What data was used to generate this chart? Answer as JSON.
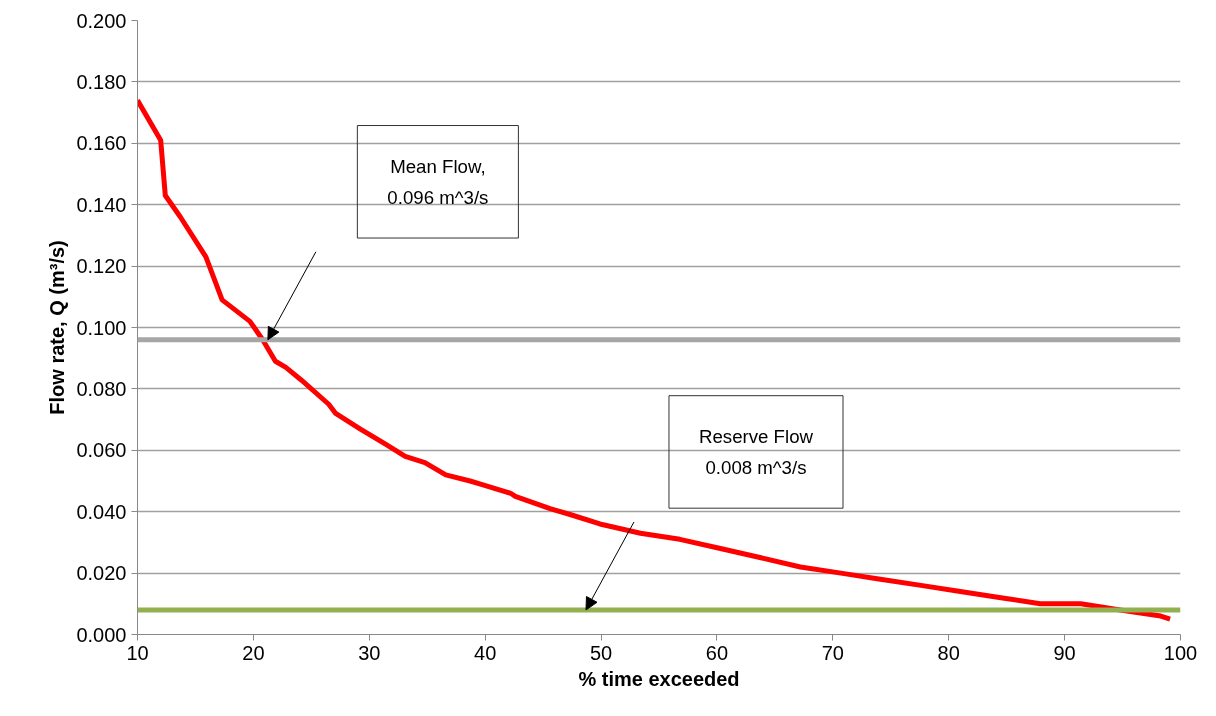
{
  "chart_data": {
    "type": "line",
    "xlabel": "% time exceeded",
    "ylabel": "Flow rate, Q (m³/s)",
    "x": [
      10,
      12,
      12.4,
      13.7,
      15.9,
      16.7,
      17.3,
      19.7,
      20.8,
      21.9,
      22.8,
      24.1,
      26.5,
      27.1,
      29.2,
      31.4,
      33.1,
      34.8,
      36.6,
      38.7,
      39.6,
      42.2,
      42.6,
      45.6,
      47.4,
      49.9,
      53.4,
      56.8,
      60.3,
      63.8,
      67.2,
      70.7,
      74.1,
      77.6,
      81.0,
      84.5,
      87.9,
      91.4,
      94.8,
      98.3,
      99.1
    ],
    "series": [
      {
        "color": "#ff0000",
        "values": [
          0.174,
          0.161,
          0.143,
          0.136,
          0.123,
          0.115,
          0.109,
          0.102,
          0.096,
          0.089,
          0.087,
          0.083,
          0.075,
          0.072,
          0.067,
          0.062,
          0.058,
          0.056,
          0.052,
          0.05,
          0.049,
          0.046,
          0.045,
          0.041,
          0.039,
          0.036,
          0.033,
          0.031,
          0.028,
          0.025,
          0.022,
          0.02,
          0.018,
          0.016,
          0.014,
          0.012,
          0.01,
          0.01,
          0.008,
          0.006,
          0.005
        ]
      }
    ],
    "xlim": [
      10,
      100
    ],
    "xticks": [
      10,
      20,
      30,
      40,
      50,
      60,
      70,
      80,
      90,
      100
    ],
    "ylim": [
      0,
      0.2
    ],
    "yticks": [
      {
        "value": 0,
        "label": "0.000"
      },
      {
        "value": 0.02,
        "label": "0.020"
      },
      {
        "value": 0.04,
        "label": "0.040"
      },
      {
        "value": 0.06,
        "label": "0.060"
      },
      {
        "value": 0.08,
        "label": "0.080"
      },
      {
        "value": 0.1,
        "label": "0.100"
      },
      {
        "value": 0.12,
        "label": "0.120"
      },
      {
        "value": 0.14,
        "label": "0.140"
      },
      {
        "value": 0.16,
        "label": "0.160"
      },
      {
        "value": 0.18,
        "label": "0.180"
      },
      {
        "value": 0.2,
        "label": "0.200"
      }
    ],
    "grid": "y",
    "marker": "none",
    "line_style": "solid",
    "ref_lines": [
      {
        "axis": "y",
        "value": 0.096,
        "color": "#a6a6a6"
      },
      {
        "axis": "y",
        "value": 0.008,
        "color": "#92b050"
      }
    ],
    "annotations": [
      "Mean Flow,\n0.096 m^3/s",
      "Reserve Flow\n0.008 m^3/s"
    ]
  }
}
